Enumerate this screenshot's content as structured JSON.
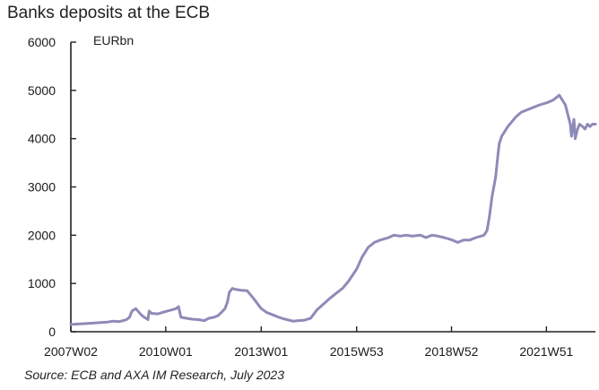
{
  "chart_data": {
    "type": "line",
    "title": "Banks deposits at the ECB",
    "unit": "EURbn",
    "source": "Source: ECB and AXA IM Research, July 2023",
    "ylim": [
      0,
      6000
    ],
    "yticks": [
      0,
      1000,
      2000,
      3000,
      4000,
      5000,
      6000
    ],
    "xlim": [
      "2007W02",
      "2023W27"
    ],
    "xticks": [
      "2007W02",
      "2010W01",
      "2013W01",
      "2015W53",
      "2018W52",
      "2021W51"
    ],
    "grid": false,
    "legend": "none",
    "color": "#8e8bb8",
    "series": [
      {
        "x": [
          "2007W02",
          "2007W30",
          "2008W10",
          "2008W20",
          "2008W28",
          "2008W36",
          "2008W41",
          "2008W46",
          "2008W50",
          "2009W04",
          "2009W13",
          "2009W18",
          "2009W24",
          "2009W26",
          "2009W30",
          "2009W40",
          "2010W01",
          "2010W10",
          "2010W18",
          "2010W22",
          "2010W26",
          "2010W34",
          "2010W44",
          "2011W02",
          "2011W12",
          "2011W20",
          "2011W28",
          "2011W34",
          "2011W40",
          "2011W46",
          "2011W50",
          "2012W01",
          "2012W06",
          "2012W10",
          "2012W20",
          "2012W30",
          "2012W40",
          "2013W01",
          "2013W10",
          "2013W20",
          "2013W30",
          "2013W40",
          "2014W01",
          "2014W10",
          "2014W20",
          "2014W30",
          "2014W40",
          "2015W01",
          "2015W10",
          "2015W20",
          "2015W30",
          "2015W40",
          "2016W01",
          "2016W10",
          "2016W20",
          "2016W30",
          "2016W40",
          "2017W01",
          "2017W10",
          "2017W20",
          "2017W30",
          "2017W40",
          "2018W01",
          "2018W10",
          "2018W20",
          "2018W30",
          "2018W40",
          "2019W01",
          "2019W10",
          "2019W20",
          "2019W30",
          "2019W40",
          "2020W01",
          "2020W06",
          "2020W10",
          "2020W14",
          "2020W20",
          "2020W24",
          "2020W26",
          "2020W30",
          "2020W40",
          "2021W01",
          "2021W10",
          "2021W20",
          "2021W30",
          "2021W40",
          "2022W01",
          "2022W10",
          "2022W20",
          "2022W30",
          "2022W38",
          "2022W40",
          "2022W44",
          "2022W46",
          "2022W50",
          "2023W01",
          "2023W06",
          "2023W10",
          "2023W14",
          "2023W18",
          "2023W22",
          "2023W27"
        ],
        "y": [
          150,
          170,
          200,
          220,
          210,
          230,
          250,
          300,
          430,
          480,
          350,
          300,
          250,
          430,
          380,
          370,
          420,
          450,
          480,
          520,
          300,
          280,
          260,
          250,
          230,
          280,
          300,
          330,
          400,
          480,
          620,
          820,
          900,
          880,
          860,
          850,
          700,
          480,
          400,
          350,
          300,
          260,
          220,
          230,
          240,
          280,
          450,
          600,
          700,
          800,
          900,
          1050,
          1300,
          1550,
          1750,
          1850,
          1900,
          1950,
          2000,
          1980,
          2000,
          1980,
          2000,
          1950,
          2000,
          1980,
          1950,
          1900,
          1850,
          1900,
          1900,
          1950,
          2000,
          2100,
          2400,
          2800,
          3200,
          3700,
          3900,
          4050,
          4250,
          4450,
          4550,
          4600,
          4650,
          4700,
          4750,
          4800,
          4900,
          4700,
          4300,
          4050,
          4400,
          4000,
          4200,
          4300,
          4250,
          4200,
          4300,
          4250,
          4300,
          4300
        ]
      }
    ]
  }
}
